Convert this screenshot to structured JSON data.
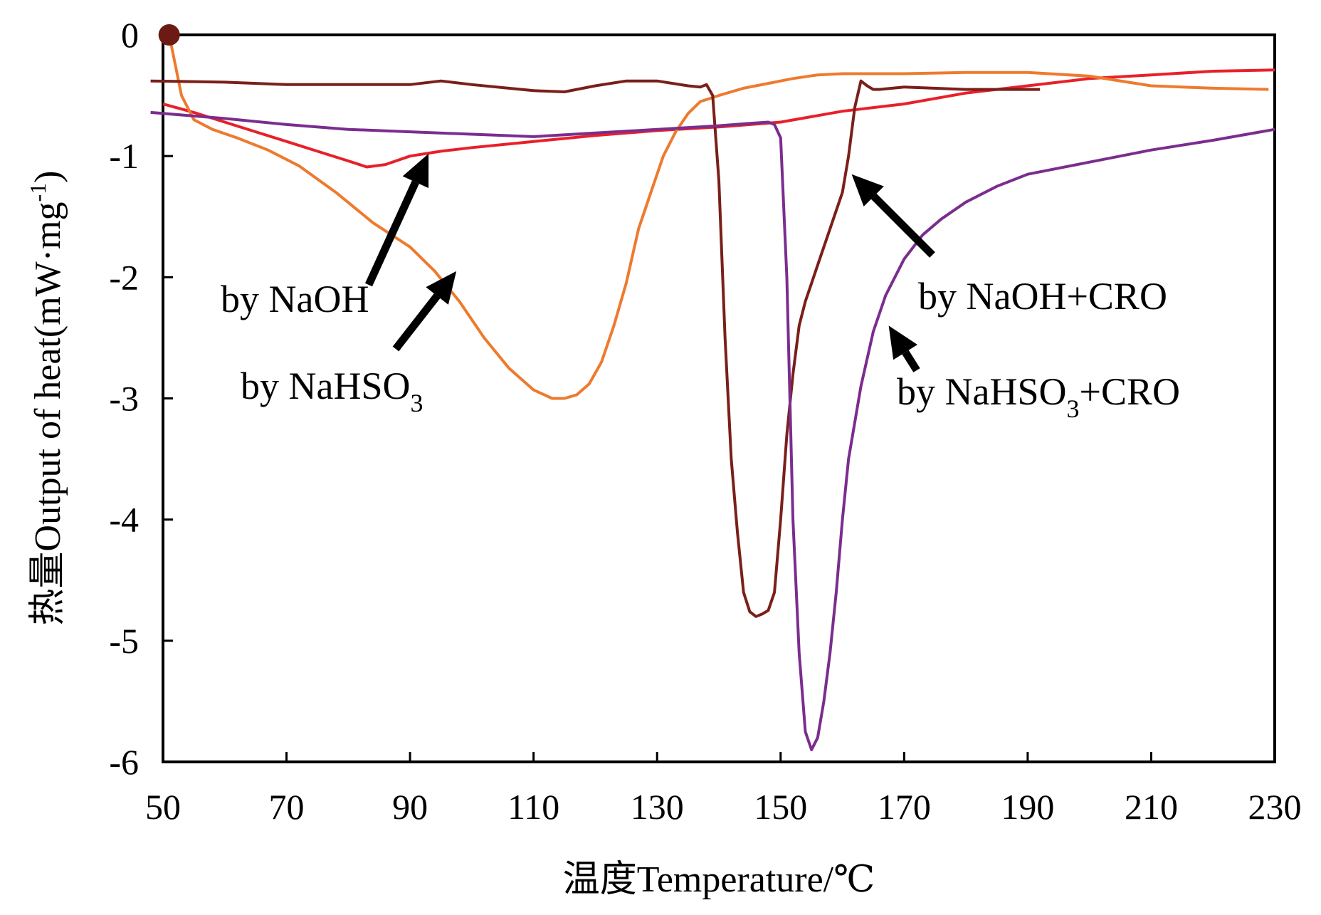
{
  "chart_data": {
    "type": "line",
    "title": "",
    "xlabel": "温度Temperature/℃",
    "ylabel": "热量Output of heat(mW·mg",
    "ylabel_sup": "-1",
    "ylabel_close": ")",
    "xlim": [
      50,
      230
    ],
    "ylim": [
      -6,
      0
    ],
    "x_ticks": [
      50,
      70,
      90,
      110,
      130,
      150,
      170,
      190,
      210,
      230
    ],
    "y_ticks": [
      0,
      -1,
      -2,
      -3,
      -4,
      -5,
      -6
    ],
    "x_tick_labels": [
      "50",
      "70",
      "90",
      "110",
      "130",
      "150",
      "170",
      "190",
      "210",
      "230"
    ],
    "y_tick_labels": [
      "0",
      "-1",
      "-2",
      "-3",
      "-4",
      "-5",
      "-6"
    ],
    "grid": false,
    "series": [
      {
        "name": "by NaOH",
        "color": "#e8202a",
        "x": [
          50,
          55,
          60,
          65,
          70,
          75,
          80,
          83,
          86,
          90,
          95,
          100,
          110,
          120,
          130,
          140,
          150,
          160,
          170,
          180,
          190,
          200,
          210,
          220,
          230
        ],
        "y": [
          -0.57,
          -0.64,
          -0.72,
          -0.8,
          -0.88,
          -0.96,
          -1.04,
          -1.09,
          -1.07,
          -1.0,
          -0.96,
          -0.93,
          -0.88,
          -0.83,
          -0.79,
          -0.76,
          -0.72,
          -0.63,
          -0.57,
          -0.48,
          -0.42,
          -0.36,
          -0.33,
          -0.3,
          -0.29
        ]
      },
      {
        "name": "by NaHSO3",
        "color": "#ee7a2e",
        "x": [
          51,
          52,
          53,
          55,
          58,
          62,
          67,
          72,
          78,
          84,
          90,
          94,
          98,
          102,
          106,
          110,
          113,
          115,
          117,
          119,
          121,
          123,
          125,
          127,
          129,
          131,
          133,
          135,
          137,
          140,
          144,
          148,
          152,
          156,
          160,
          170,
          180,
          190,
          200,
          210,
          220,
          229
        ],
        "y": [
          0.0,
          -0.25,
          -0.5,
          -0.7,
          -0.78,
          -0.85,
          -0.95,
          -1.08,
          -1.3,
          -1.55,
          -1.75,
          -1.95,
          -2.2,
          -2.5,
          -2.75,
          -2.93,
          -3.0,
          -3.0,
          -2.97,
          -2.88,
          -2.7,
          -2.4,
          -2.05,
          -1.6,
          -1.3,
          -1.0,
          -0.8,
          -0.65,
          -0.55,
          -0.5,
          -0.44,
          -0.4,
          -0.36,
          -0.33,
          -0.32,
          -0.32,
          -0.31,
          -0.31,
          -0.34,
          -0.42,
          -0.44,
          -0.45
        ]
      },
      {
        "name": "by NaOH+CRO",
        "color": "#7a1f1a",
        "x": [
          48,
          60,
          70,
          80,
          90,
          95,
          100,
          110,
          115,
          120,
          125,
          130,
          135,
          137,
          138,
          139,
          140,
          141,
          142,
          143,
          144,
          145,
          146,
          147,
          148,
          149,
          150,
          151,
          152,
          153,
          154,
          155,
          156,
          157,
          158,
          159,
          160,
          161,
          162,
          163,
          164,
          165,
          166,
          170,
          180,
          190,
          192
        ],
        "y": [
          -0.38,
          -0.39,
          -0.41,
          -0.41,
          -0.41,
          -0.38,
          -0.41,
          -0.46,
          -0.47,
          -0.42,
          -0.38,
          -0.38,
          -0.42,
          -0.43,
          -0.41,
          -0.5,
          -1.2,
          -2.5,
          -3.5,
          -4.1,
          -4.6,
          -4.76,
          -4.8,
          -4.78,
          -4.75,
          -4.6,
          -4.0,
          -3.3,
          -2.8,
          -2.4,
          -2.2,
          -2.05,
          -1.9,
          -1.75,
          -1.6,
          -1.45,
          -1.3,
          -1.0,
          -0.6,
          -0.38,
          -0.42,
          -0.45,
          -0.45,
          -0.43,
          -0.45,
          -0.45,
          -0.45
        ]
      },
      {
        "name": "by NaHSO3+CRO",
        "color": "#7b2d8e",
        "x": [
          48,
          60,
          70,
          80,
          90,
          100,
          110,
          120,
          130,
          140,
          145,
          148,
          149,
          150,
          151,
          152,
          153,
          154,
          155,
          156,
          157,
          158,
          159,
          160,
          161,
          163,
          165,
          167,
          170,
          173,
          176,
          180,
          185,
          190,
          200,
          210,
          220,
          230
        ],
        "y": [
          -0.64,
          -0.69,
          -0.74,
          -0.78,
          -0.8,
          -0.82,
          -0.84,
          -0.81,
          -0.78,
          -0.75,
          -0.73,
          -0.72,
          -0.74,
          -0.85,
          -2.0,
          -4.0,
          -5.1,
          -5.75,
          -5.9,
          -5.8,
          -5.5,
          -5.1,
          -4.6,
          -4.0,
          -3.5,
          -2.9,
          -2.45,
          -2.15,
          -1.85,
          -1.65,
          -1.52,
          -1.38,
          -1.25,
          -1.15,
          -1.05,
          -0.95,
          -0.87,
          -0.78
        ]
      }
    ],
    "annotations": [
      {
        "text": "by NaOH",
        "series": "by NaOH"
      },
      {
        "text": "by NaHSO",
        "sub": "3",
        "series": "by NaHSO3"
      },
      {
        "text": "by NaOH+CRO",
        "series": "by NaOH+CRO"
      },
      {
        "text": "by NaHSO",
        "sub": "3",
        "suffix": "+CRO",
        "series": "by NaHSO3+CRO"
      }
    ],
    "marker_color": "#6b1a14"
  }
}
